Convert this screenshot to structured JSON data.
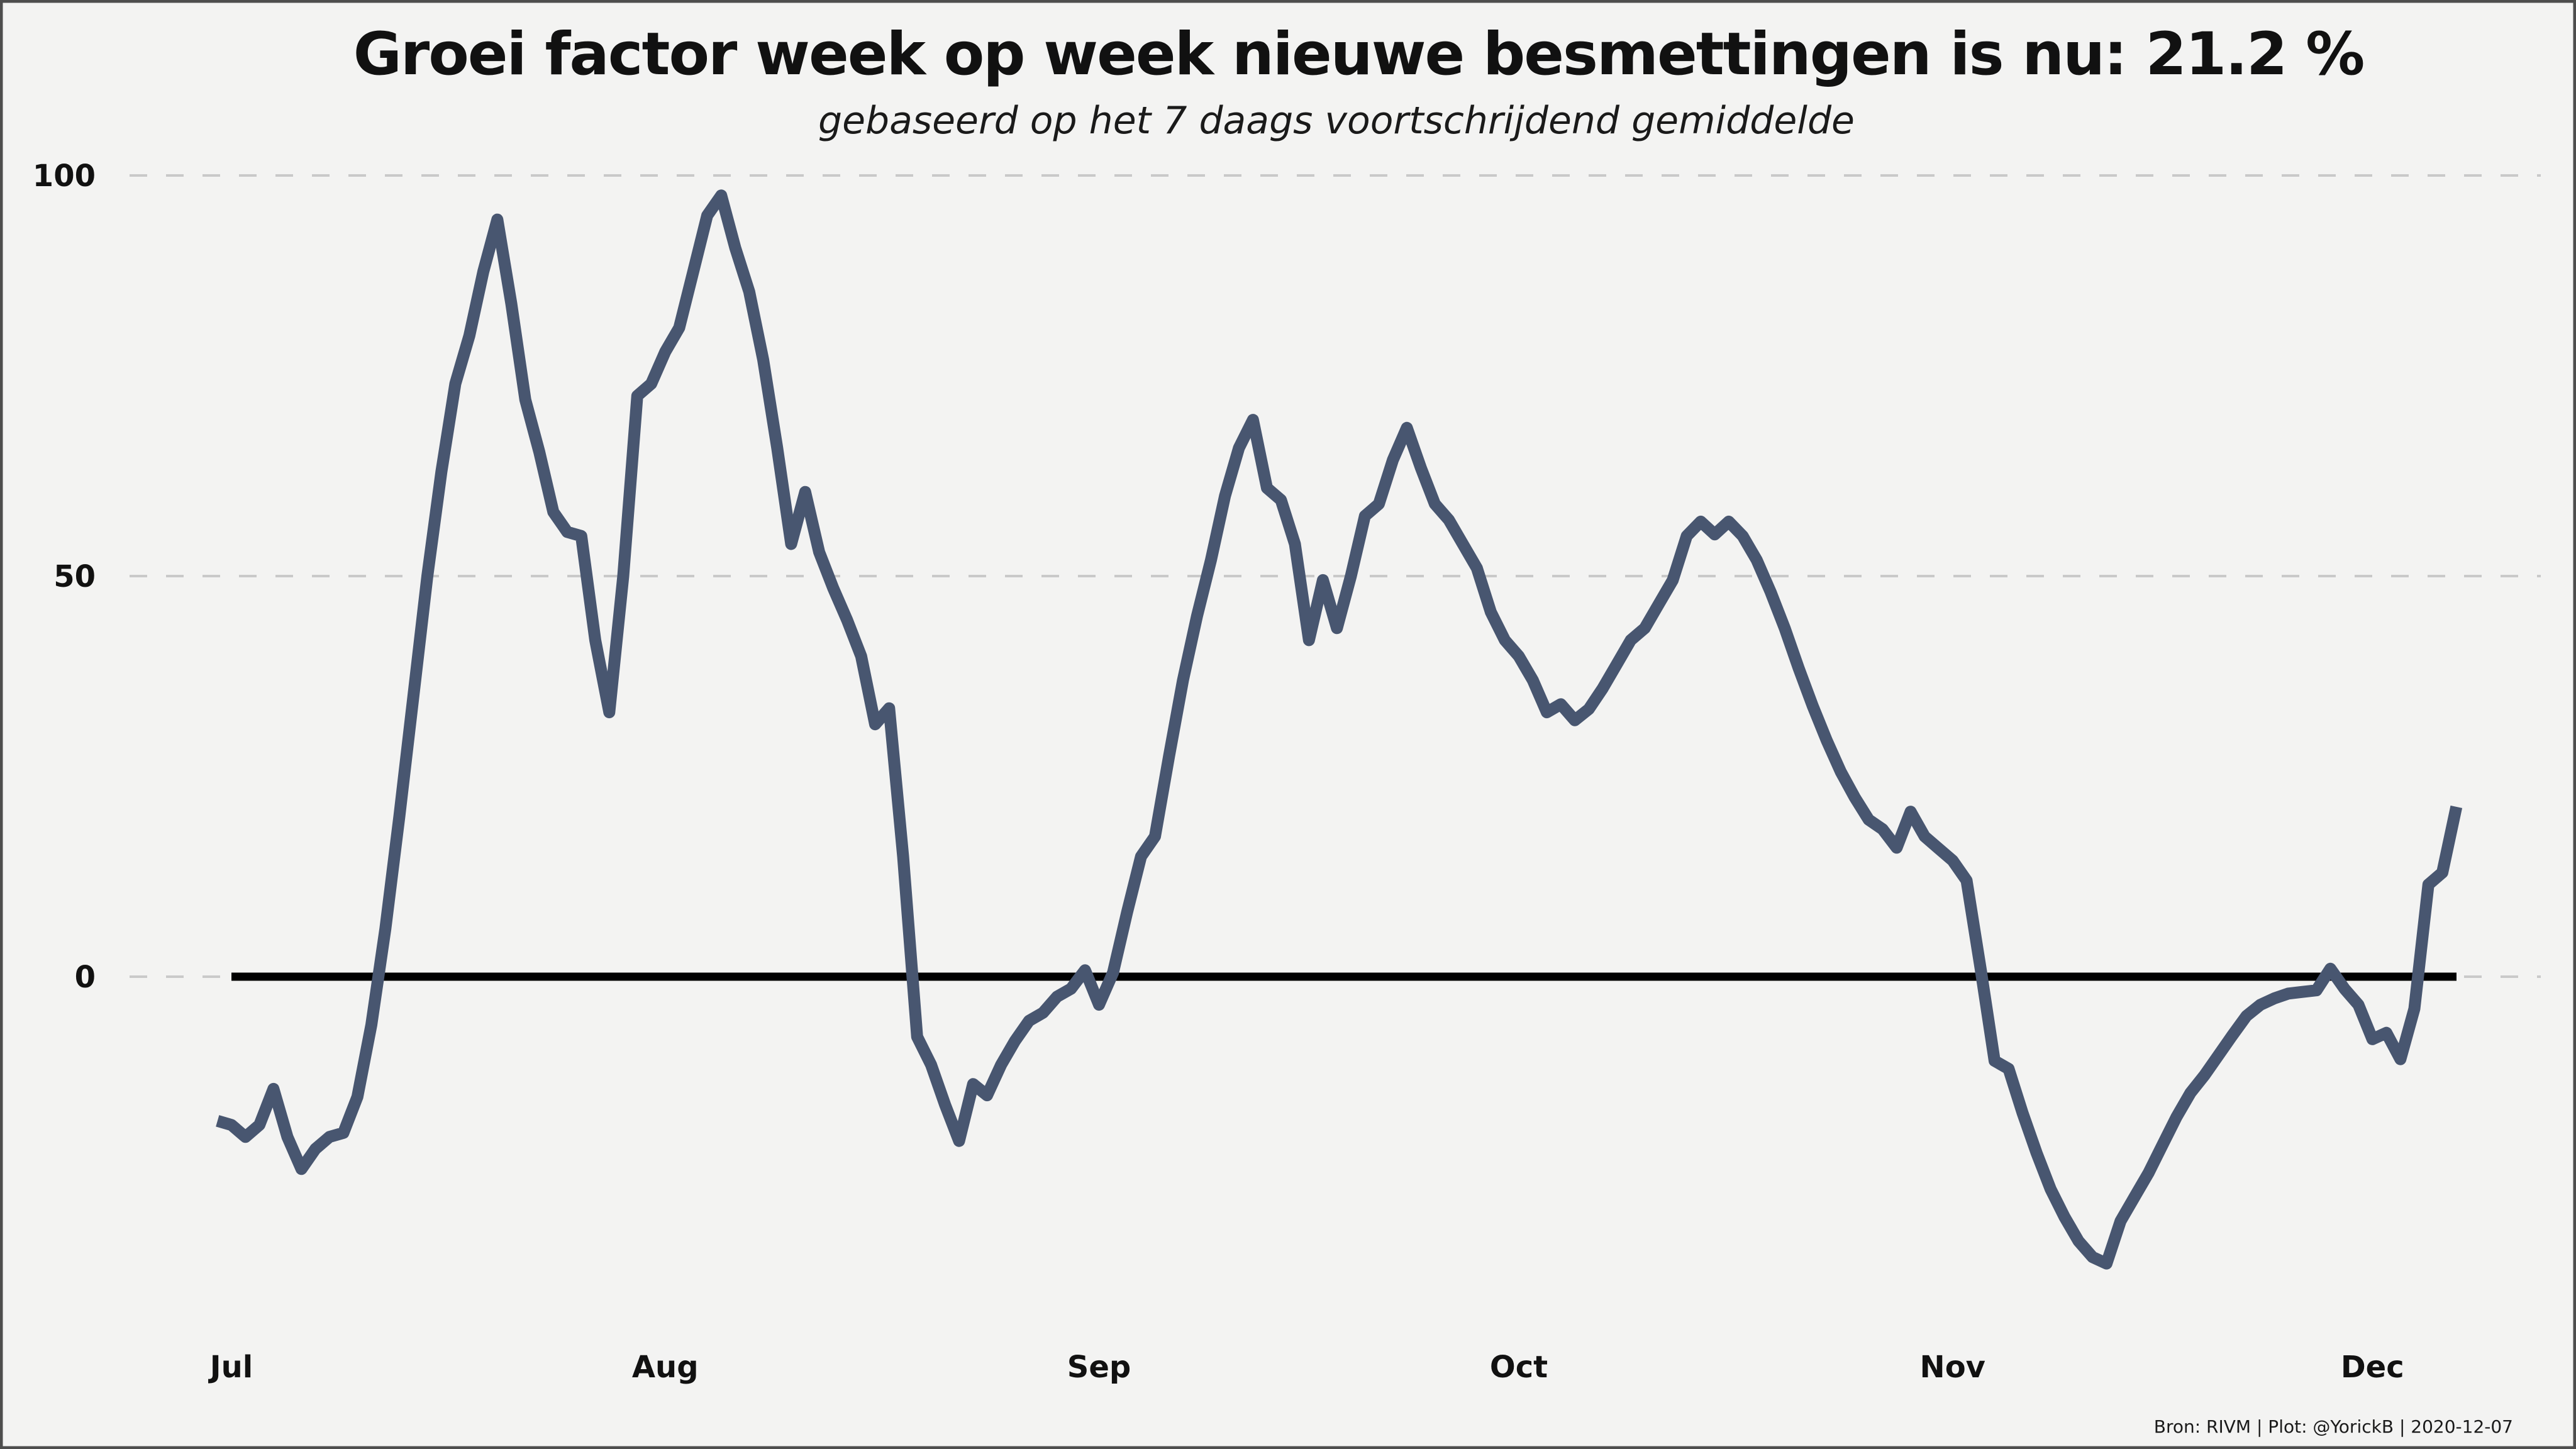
{
  "title": "Groei factor week op week nieuwe besmettingen is nu:  21.2 %",
  "subtitle": "gebaseerd op het 7 daags voortschrijdend gemiddelde",
  "footer": "Bron: RIVM | Plot: @YorickB |  2020-12-07",
  "colors": {
    "background": "#f3f3f2",
    "line": "#485670",
    "zero_line": "#000000",
    "grid": "#c9c9c9",
    "text": "#111111",
    "border": "#4d4d4d"
  },
  "y_axis": {
    "tick_labels": [
      "100",
      "50",
      "0"
    ],
    "tick_values": [
      100,
      50,
      0
    ]
  },
  "x_axis": {
    "tick_labels": [
      "Jul",
      "Aug",
      "Sep",
      "Oct",
      "Nov",
      "Dec"
    ],
    "tick_day_offsets": [
      1,
      32,
      63,
      93,
      124,
      154
    ]
  },
  "chart_data": {
    "type": "line",
    "title": "Groei factor week op week nieuwe besmettingen is nu:  21.2 %",
    "subtitle": "gebaseerd op het 7 daags voortschrijdend gemiddelde",
    "current_value_pct": 21.2,
    "x_start_date": "2020-06-30",
    "x_end_date": "2020-12-07",
    "x_unit": "day",
    "ylabel": "",
    "xlabel": "",
    "ylim": [
      -47,
      104
    ],
    "y_ticks": [
      0,
      50,
      100
    ],
    "grid": "horizontal-dashed",
    "legend": "none",
    "zero_line": true,
    "values": [
      -18,
      -18.5,
      -20,
      -18.5,
      -14,
      -20,
      -24,
      -21.5,
      -20,
      -19.5,
      -15,
      -6,
      6,
      20,
      35,
      50,
      63,
      74,
      80,
      88,
      94.5,
      84,
      72,
      65.5,
      58,
      55.5,
      55,
      42,
      33,
      50,
      72.5,
      74,
      78,
      81,
      88,
      95,
      97.5,
      91,
      85.5,
      77,
      66,
      54,
      60.5,
      53,
      48.5,
      44.5,
      40,
      31.5,
      33.5,
      15,
      -7.5,
      -11,
      -16,
      -20.5,
      -13.4,
      -14.8,
      -11,
      -8,
      -5.5,
      -4.5,
      -2.5,
      -1.5,
      0.8,
      -3.5,
      0.5,
      8,
      15,
      17.5,
      27.5,
      37,
      45,
      52,
      60,
      66,
      69.5,
      61,
      59.5,
      54,
      42,
      49.5,
      43.5,
      50,
      57.5,
      59,
      64.5,
      68.5,
      63.5,
      59,
      57,
      54,
      51,
      45.5,
      42,
      40,
      37,
      33,
      34,
      32,
      33.4,
      36,
      39,
      42,
      43.5,
      46.5,
      49.5,
      55,
      56.8,
      55.2,
      56.8,
      55,
      52,
      48,
      43.5,
      38.5,
      33.8,
      29.5,
      25.6,
      22.4,
      19.6,
      18.4,
      16.1,
      20.6,
      17.5,
      16,
      14.5,
      12,
      1,
      -10.5,
      -11.5,
      -17,
      -22,
      -26.5,
      -30,
      -33,
      -35,
      -35.8,
      -30.5,
      -27.5,
      -24.5,
      -21,
      -17.5,
      -14.5,
      -12.3,
      -9.8,
      -7.3,
      -4.9,
      -3.5,
      -2.7,
      -2.1,
      -1.9,
      -1.7,
      1,
      -1.5,
      -3.5,
      -7.8,
      -7,
      -10.3,
      -4,
      11.5,
      13,
      21.2
    ]
  }
}
